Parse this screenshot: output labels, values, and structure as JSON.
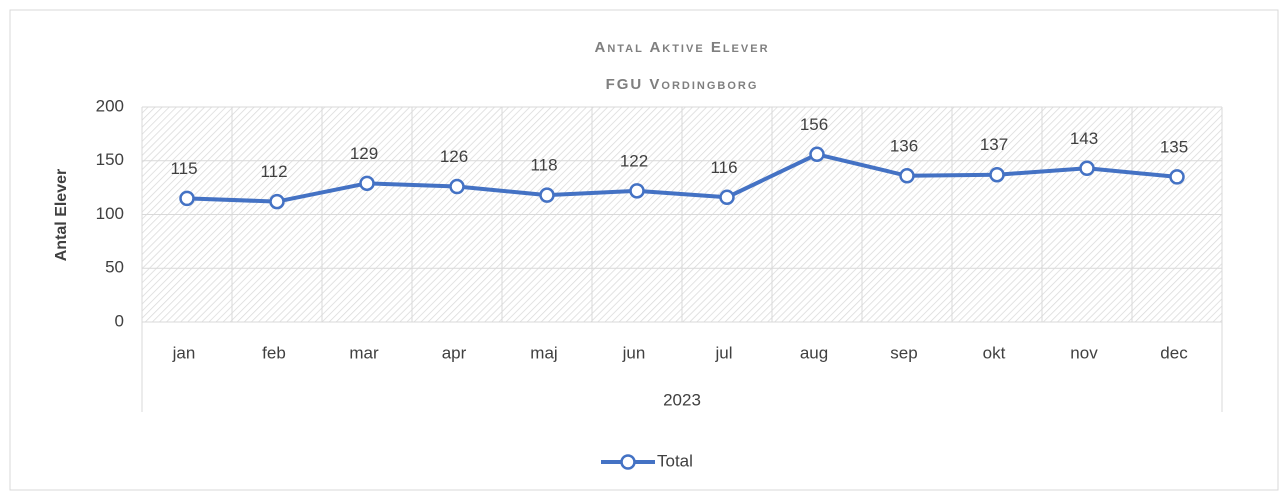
{
  "chart_data": {
    "type": "line",
    "title": "Antal Aktive Elever",
    "subtitle": "FGU Vordingborg",
    "y_label": "Antal Elever",
    "x_group": "2023",
    "categories": [
      "jan",
      "feb",
      "mar",
      "apr",
      "maj",
      "jun",
      "jul",
      "aug",
      "sep",
      "okt",
      "nov",
      "dec"
    ],
    "series": [
      {
        "name": "Total",
        "color": "#4472c4",
        "values": [
          115,
          112,
          129,
          126,
          118,
          122,
          116,
          156,
          136,
          137,
          143,
          135
        ]
      }
    ],
    "ylim": [
      0,
      200
    ],
    "yticks": [
      0,
      50,
      100,
      150,
      200
    ],
    "grid": true,
    "legend": "bottom"
  }
}
